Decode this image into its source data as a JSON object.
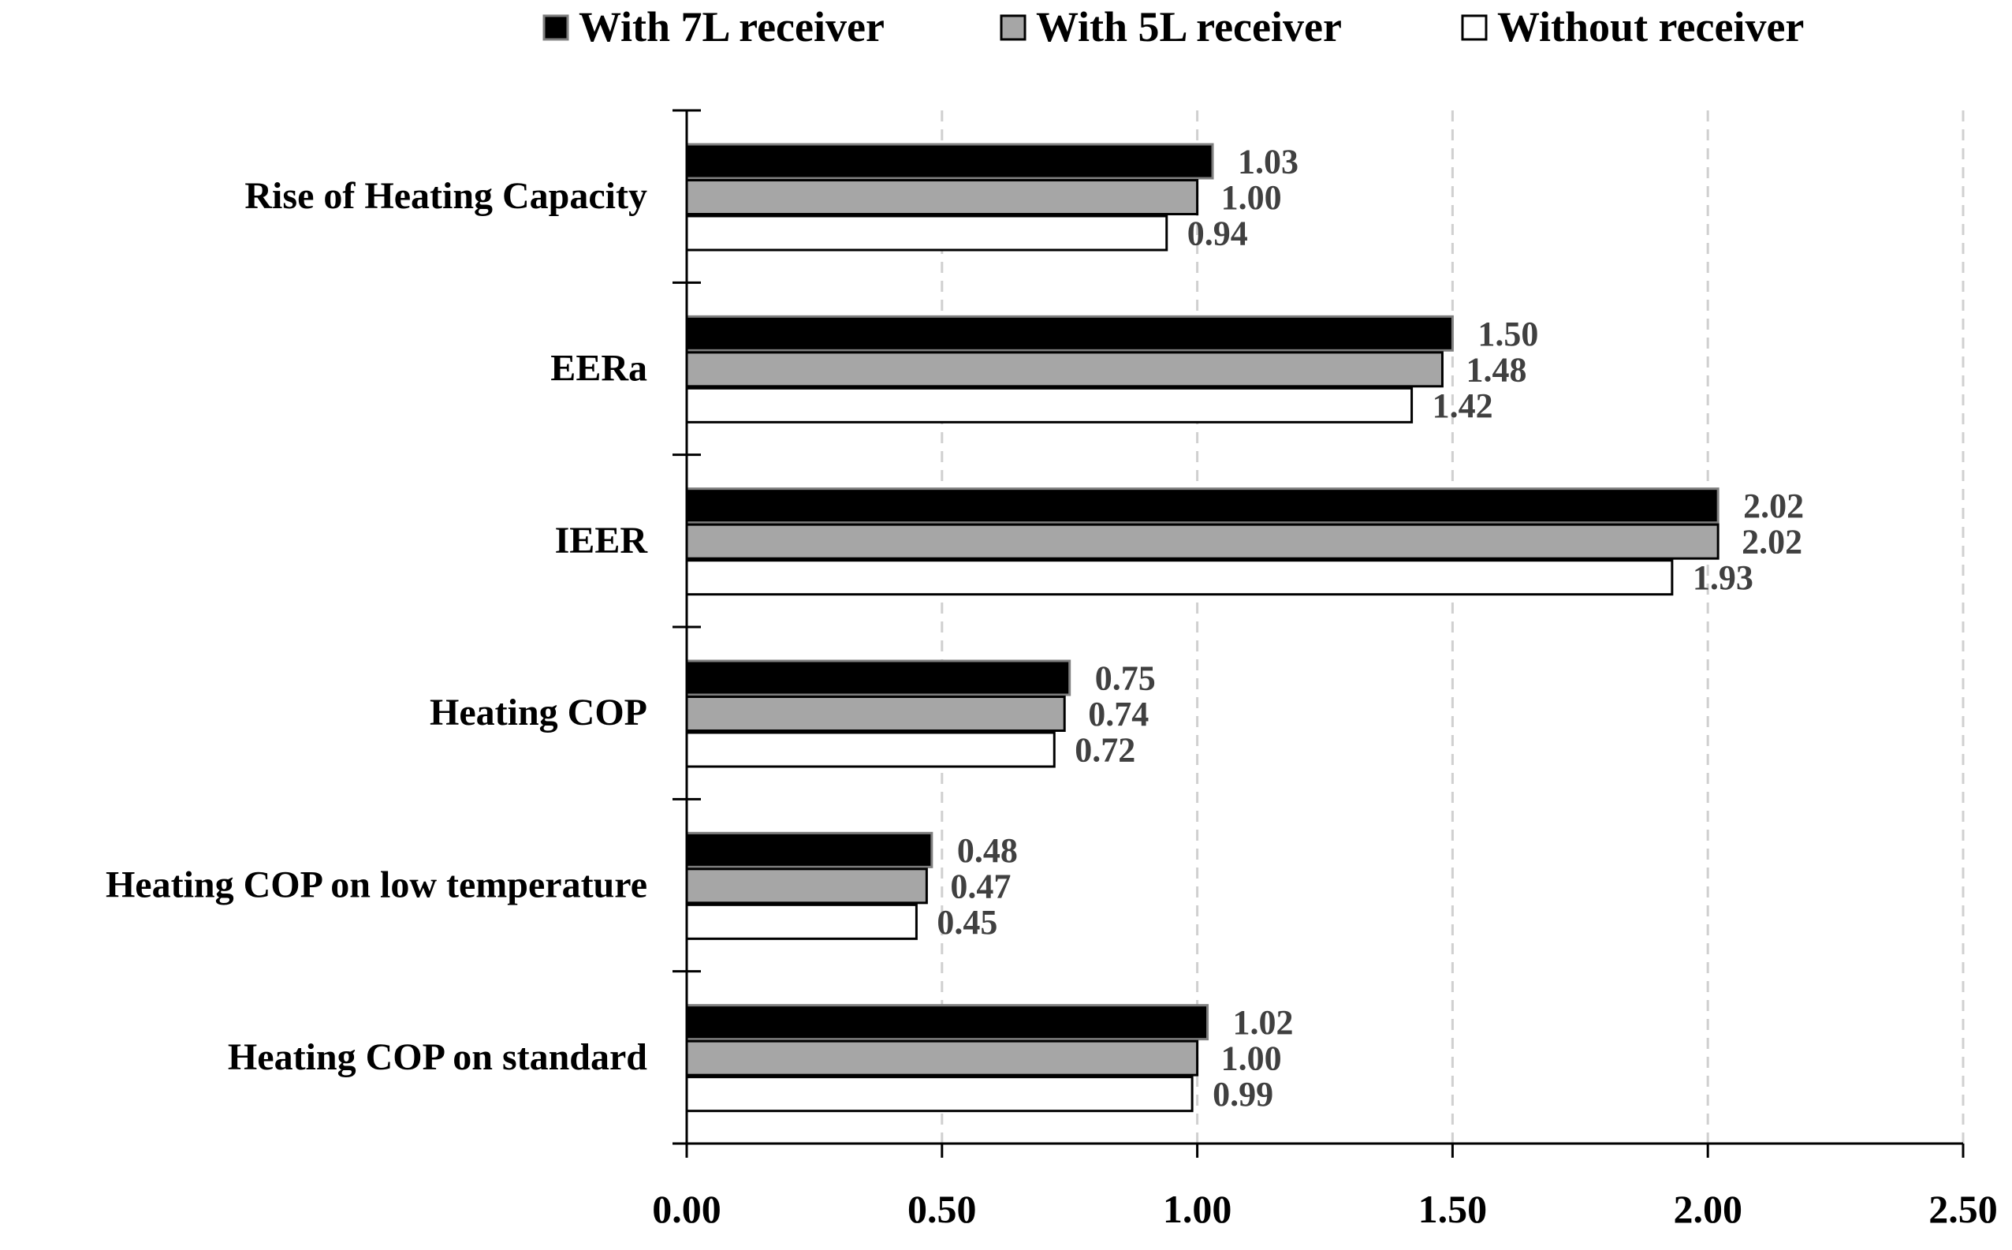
{
  "chart_data": {
    "type": "bar",
    "orientation": "horizontal",
    "title": "",
    "xlabel": "",
    "ylabel": "",
    "xlim": [
      0,
      2.5
    ],
    "x_ticks": [
      "0.00",
      "0.50",
      "1.00",
      "1.50",
      "2.00",
      "2.50"
    ],
    "grid": "vertical dashed",
    "legend_position": "top",
    "categories": [
      "Rise of Heating Capacity",
      "EERa",
      "IEER",
      "Heating COP",
      "Heating COP on low temperature",
      "Heating COP on standard"
    ],
    "series": [
      {
        "name": "With 7L receiver",
        "color": "#000000",
        "values": [
          1.03,
          1.5,
          2.02,
          0.75,
          0.48,
          1.02
        ],
        "labels": [
          "1.03",
          "1.50",
          "2.02",
          "0.75",
          "0.48",
          "1.02"
        ]
      },
      {
        "name": "With 5L receiver",
        "color": "#a6a6a6",
        "values": [
          1.0,
          1.48,
          2.02,
          0.74,
          0.47,
          1.0
        ],
        "labels": [
          "1.00",
          "1.48",
          "2.02",
          "0.74",
          "0.47",
          "1.00"
        ]
      },
      {
        "name": "Without receiver",
        "color": "#ffffff",
        "values": [
          0.94,
          1.42,
          1.93,
          0.72,
          0.45,
          0.99
        ],
        "labels": [
          "0.94",
          "1.42",
          "1.93",
          "0.72",
          "0.45",
          "0.99"
        ]
      }
    ]
  }
}
